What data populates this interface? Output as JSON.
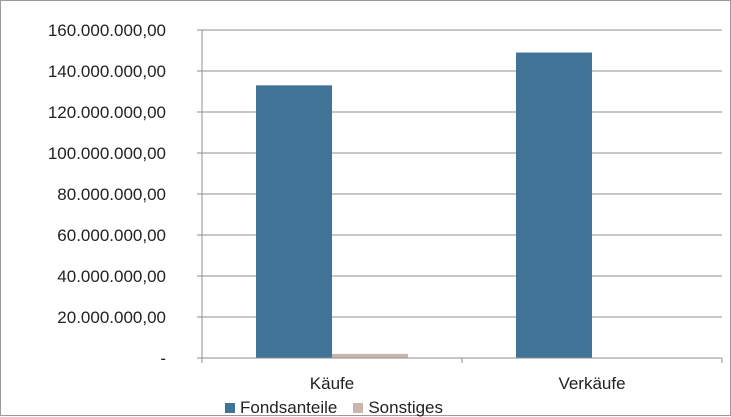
{
  "chart_data": {
    "type": "bar",
    "categories": [
      "Käufe",
      "Verkäufe"
    ],
    "series": [
      {
        "name": "Fondsanteile",
        "color": "#3f7398",
        "values": [
          133000000,
          149000000
        ]
      },
      {
        "name": "Sonstiges",
        "color": "#c9b7ad",
        "values": [
          2000000,
          0
        ]
      }
    ],
    "y_ticks": [
      0,
      20000000,
      40000000,
      60000000,
      80000000,
      100000000,
      120000000,
      140000000,
      160000000
    ],
    "y_tick_labels": [
      "-",
      "20.000.000,00",
      "40.000.000,00",
      "60.000.000,00",
      "80.000.000,00",
      "100.000.000,00",
      "120.000.000,00",
      "140.000.000,00",
      "160.000.000,00"
    ],
    "ylim": [
      0,
      160000000
    ],
    "grid": true,
    "legend_position": "bottom"
  }
}
